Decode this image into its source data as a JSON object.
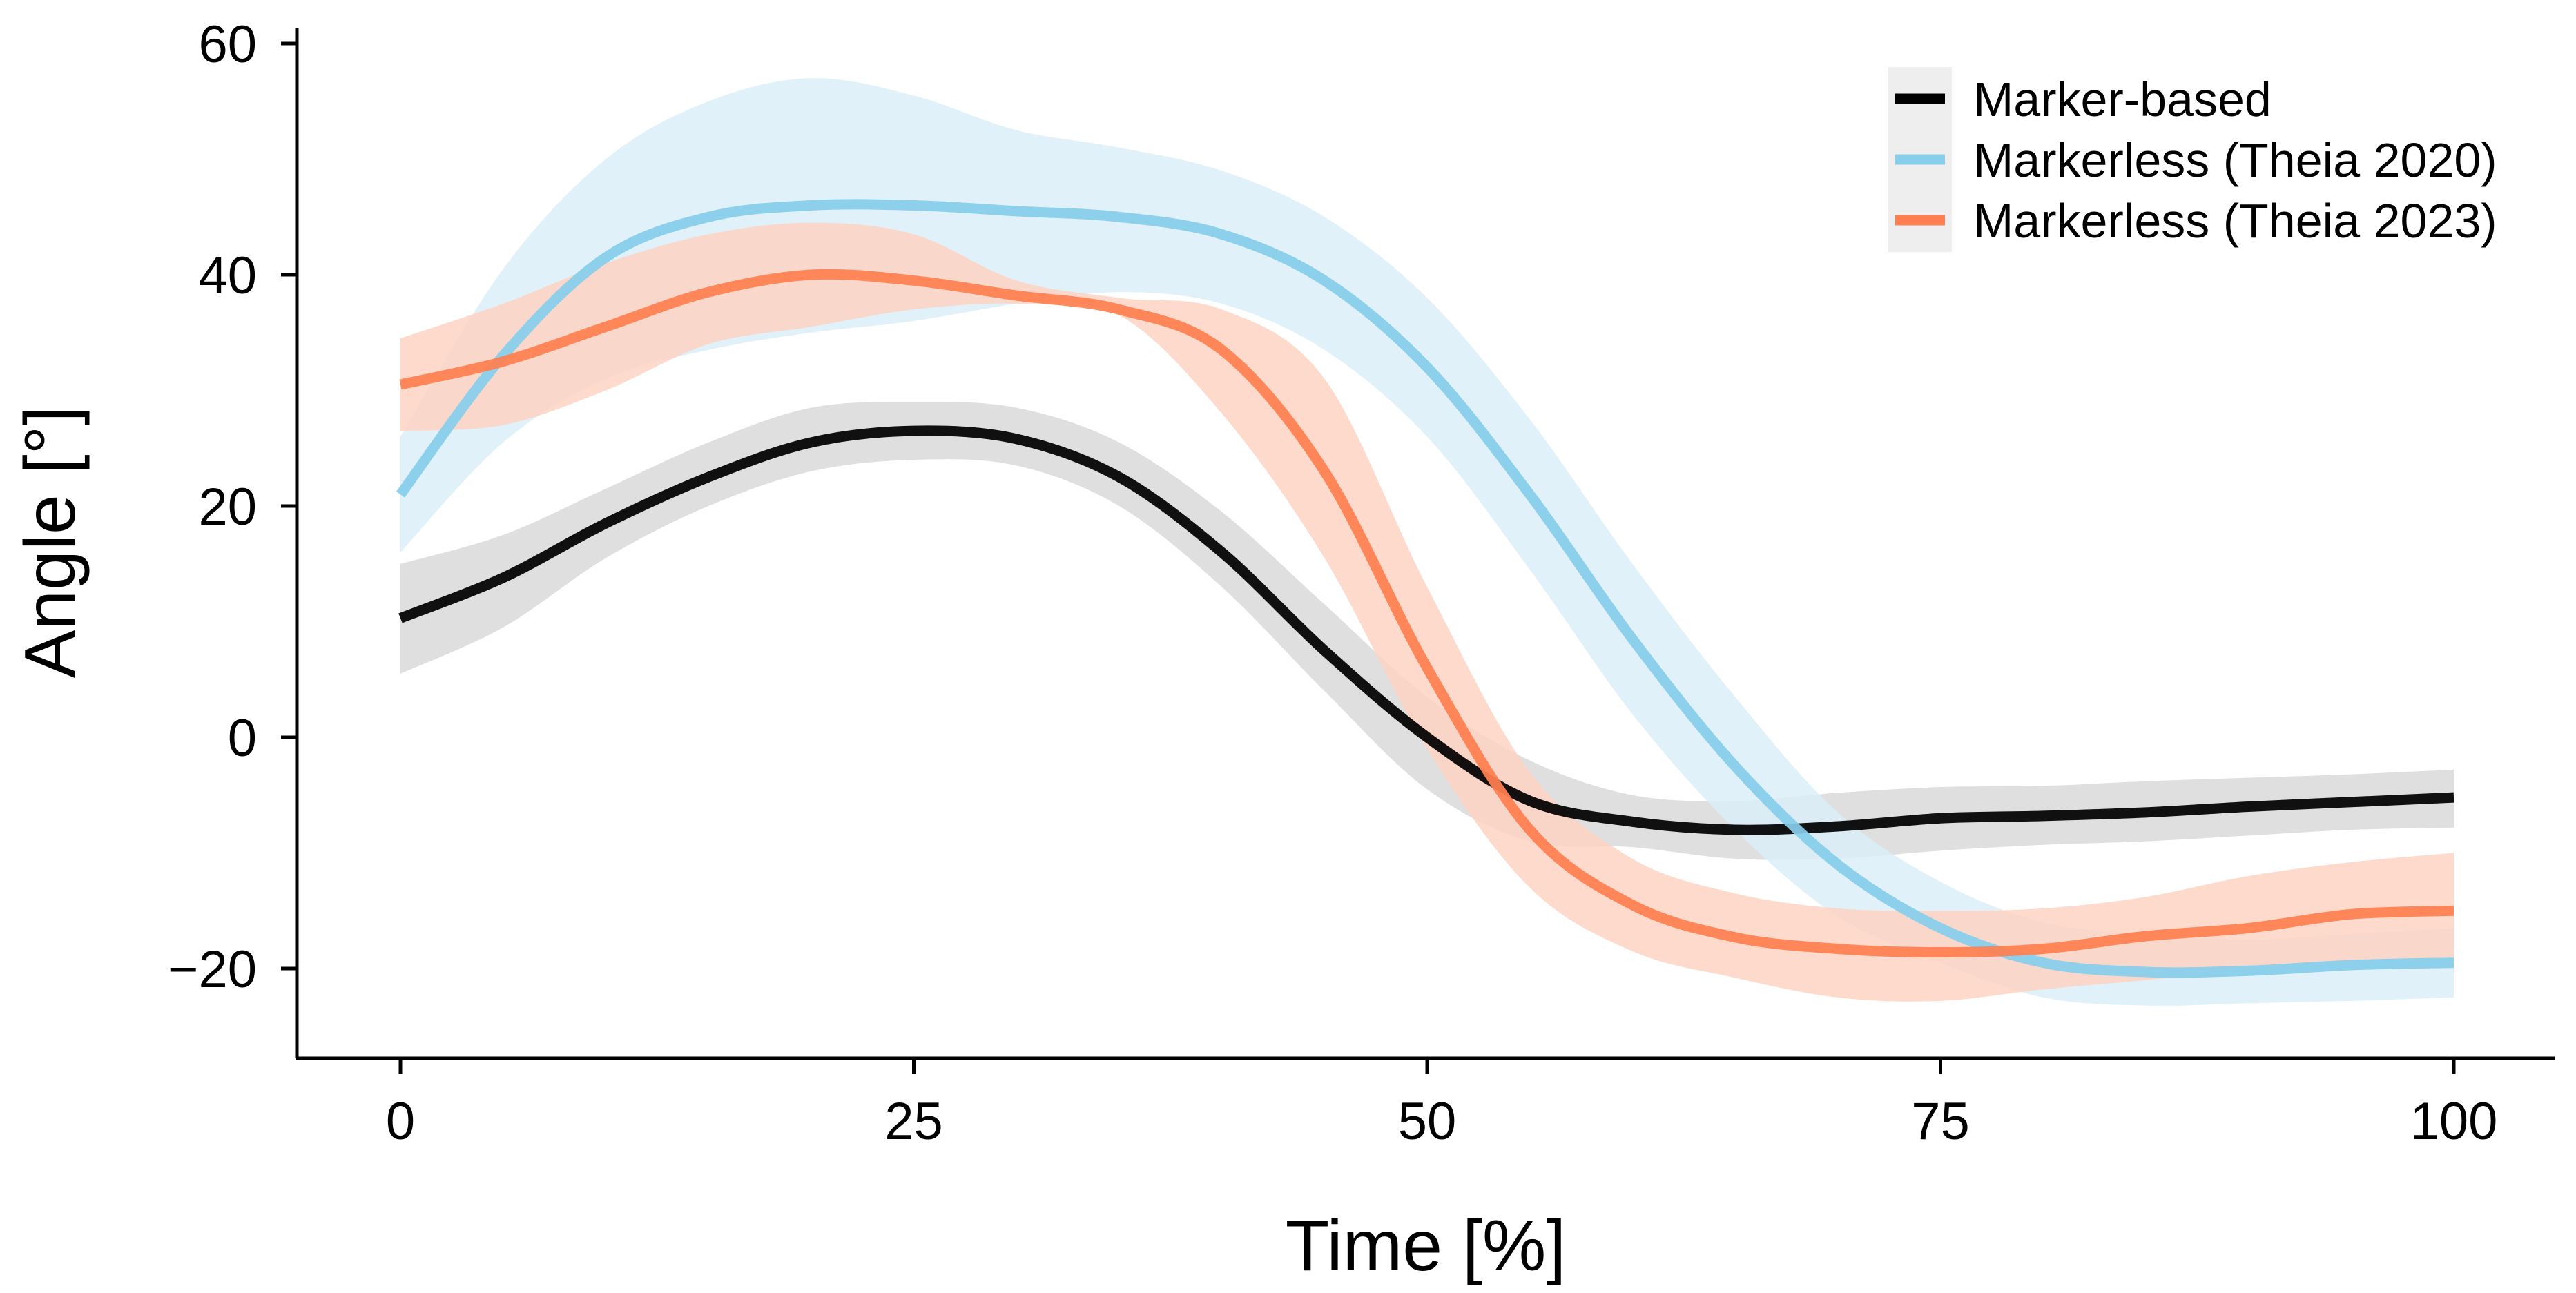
{
  "chart_data": {
    "type": "line",
    "title": "",
    "xlabel": "Time [%]",
    "ylabel": "Angle [°]",
    "xlim": [
      -5,
      105
    ],
    "ylim": [
      -28,
      61
    ],
    "xticks": [
      {
        "value": 0,
        "label": "0"
      },
      {
        "value": 25,
        "label": "25"
      },
      {
        "value": 50,
        "label": "50"
      },
      {
        "value": 75,
        "label": "75"
      },
      {
        "value": 100,
        "label": "100"
      }
    ],
    "yticks": [
      {
        "value": -20,
        "label": "−20"
      },
      {
        "value": 0,
        "label": "0"
      },
      {
        "value": 20,
        "label": "20"
      },
      {
        "value": 40,
        "label": "40"
      },
      {
        "value": 60,
        "label": "60"
      }
    ],
    "grid": false,
    "legend_position": "top-right",
    "x": [
      0,
      5,
      10,
      15,
      20,
      25,
      30,
      35,
      40,
      45,
      50,
      55,
      60,
      65,
      70,
      75,
      80,
      85,
      90,
      95,
      100
    ],
    "series": [
      {
        "name": "Marker-based",
        "color": "#000000",
        "band_color": "#d9d9d9",
        "mean": [
          10.3,
          13.8,
          18.5,
          22.5,
          25.5,
          26.5,
          25.8,
          22.5,
          16.0,
          7.5,
          0.0,
          -5.5,
          -7.3,
          -8.0,
          -7.7,
          -7.0,
          -6.8,
          -6.5,
          -6.0,
          -5.6,
          -5.2
        ],
        "lower": [
          5.5,
          9.5,
          15.5,
          20.0,
          23.0,
          24.0,
          23.5,
          20.0,
          13.0,
          4.0,
          -4.5,
          -9.0,
          -9.5,
          -10.5,
          -10.5,
          -9.8,
          -9.3,
          -9.0,
          -8.5,
          -8.0,
          -7.8
        ],
        "upper": [
          15.0,
          17.5,
          21.5,
          25.5,
          28.5,
          29.0,
          28.5,
          25.5,
          19.5,
          11.5,
          3.5,
          -2.0,
          -5.0,
          -5.5,
          -4.8,
          -4.3,
          -4.2,
          -3.8,
          -3.5,
          -3.2,
          -2.8
        ]
      },
      {
        "name": "Markerless (Theia 2020)",
        "color": "#87ceeb",
        "band_color": "#dbeef8",
        "mean": [
          21.0,
          33.0,
          41.5,
          45.0,
          46.0,
          46.0,
          45.5,
          45.0,
          43.5,
          39.5,
          32.0,
          21.0,
          8.5,
          -2.5,
          -11.0,
          -16.5,
          -19.5,
          -20.3,
          -20.2,
          -19.7,
          -19.5
        ],
        "lower": [
          16.0,
          25.5,
          31.0,
          33.5,
          35.0,
          36.0,
          37.5,
          38.5,
          37.5,
          33.5,
          26.0,
          14.5,
          2.0,
          -8.0,
          -15.5,
          -19.5,
          -22.5,
          -23.2,
          -23.0,
          -22.8,
          -22.5
        ],
        "upper": [
          26.0,
          40.5,
          50.0,
          55.0,
          57.0,
          55.5,
          52.5,
          51.0,
          49.0,
          45.0,
          38.0,
          27.5,
          15.0,
          3.5,
          -6.5,
          -12.5,
          -16.0,
          -17.0,
          -17.5,
          -17.0,
          -16.5
        ]
      },
      {
        "name": "Markerless (Theia 2023)",
        "color": "#ff7f50",
        "band_color": "#fdd3c3",
        "mean": [
          30.5,
          32.5,
          35.5,
          38.5,
          40.0,
          39.5,
          38.2,
          37.0,
          33.5,
          23.0,
          6.0,
          -8.0,
          -14.5,
          -17.3,
          -18.3,
          -18.6,
          -18.3,
          -17.2,
          -16.5,
          -15.3,
          -15.0
        ],
        "lower": [
          26.5,
          27.0,
          30.0,
          34.0,
          35.5,
          37.0,
          37.5,
          36.5,
          28.0,
          15.5,
          -1.0,
          -13.0,
          -18.5,
          -20.8,
          -22.5,
          -22.8,
          -21.8,
          -21.0,
          -20.0,
          -19.5,
          -19.0
        ],
        "upper": [
          34.5,
          37.5,
          41.0,
          43.5,
          44.5,
          43.5,
          39.5,
          38.0,
          37.0,
          31.0,
          13.0,
          -3.0,
          -10.5,
          -13.5,
          -14.8,
          -15.0,
          -14.8,
          -13.8,
          -12.0,
          -10.8,
          -10.0
        ]
      }
    ]
  }
}
